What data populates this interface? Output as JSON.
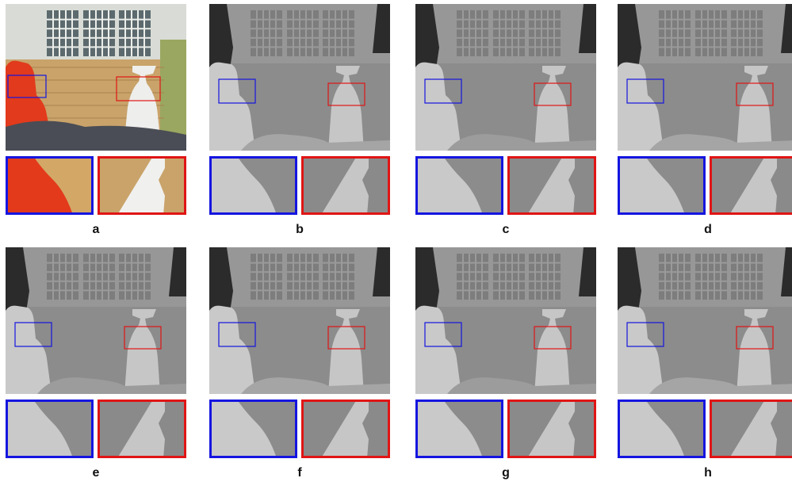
{
  "panels": [
    {
      "label": "a"
    },
    {
      "label": "b"
    },
    {
      "label": "c"
    },
    {
      "label": "d"
    },
    {
      "label": "e"
    },
    {
      "label": "f"
    },
    {
      "label": "g"
    },
    {
      "label": "h"
    }
  ]
}
